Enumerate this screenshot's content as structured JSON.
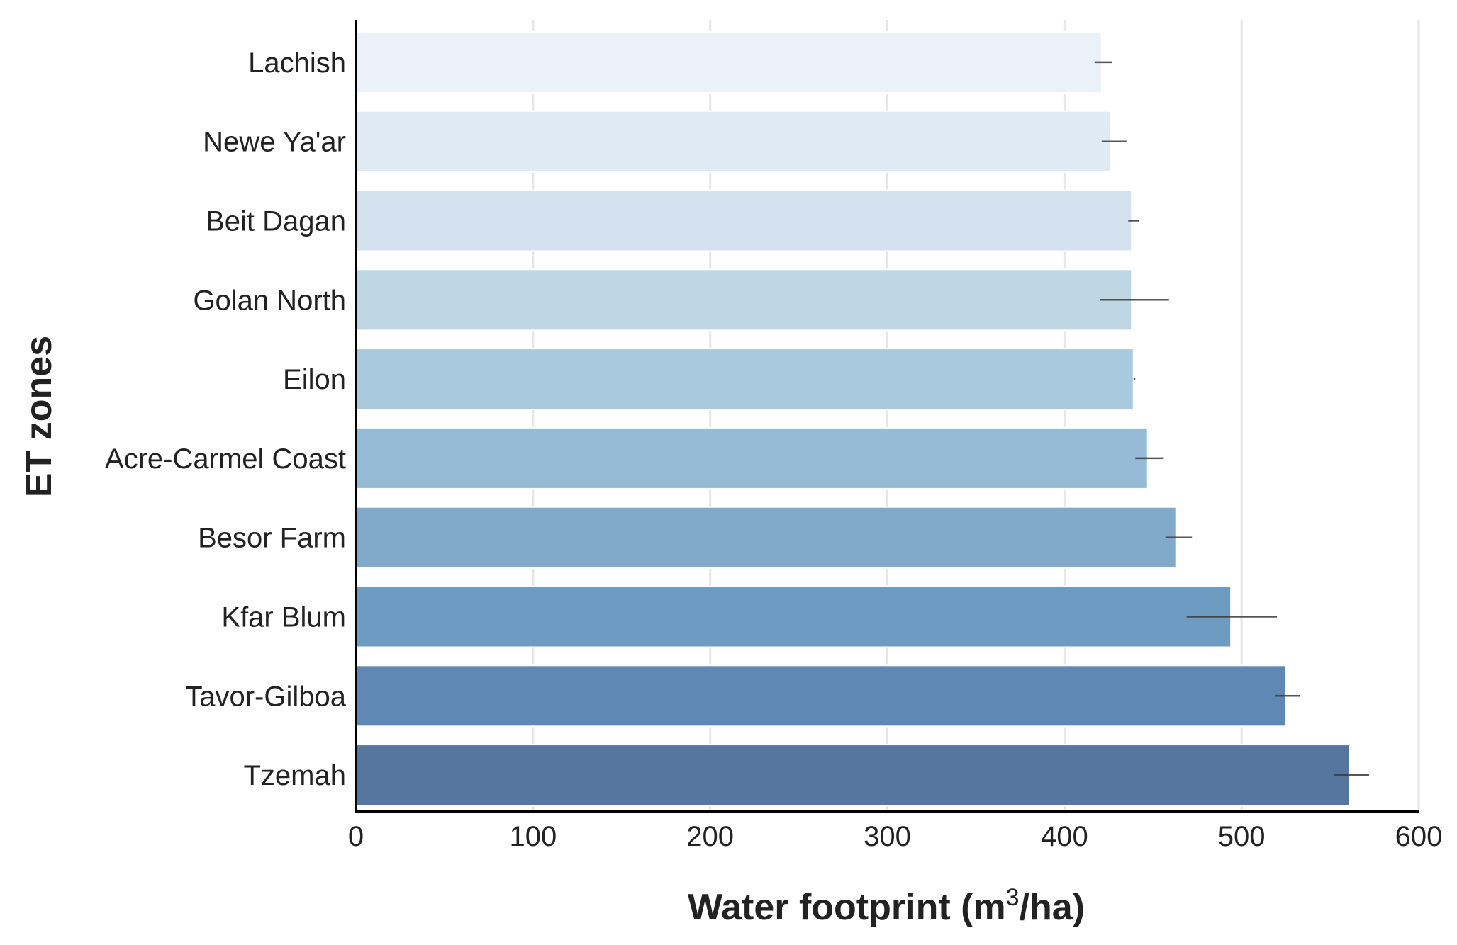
{
  "chart_data": {
    "type": "bar",
    "orientation": "horizontal",
    "categories": [
      "Lachish",
      "Newe Ya'ar",
      "Beit Dagan",
      "Golan North",
      "Eilon",
      "Acre-Carmel Coast",
      "Besor Farm",
      "Kfar Blum",
      "Tavor-Gilboa",
      "Tzemah"
    ],
    "values": [
      421,
      426,
      438,
      438,
      439,
      447,
      463,
      494,
      525,
      561
    ],
    "error_low": [
      417,
      421,
      436,
      420,
      439,
      440,
      457,
      469,
      519,
      552
    ],
    "error_high": [
      427,
      435,
      442,
      459,
      440,
      456,
      472,
      520,
      533,
      572
    ],
    "colors": [
      "#eaf1f8",
      "#dfeaf3",
      "#d3e2ee",
      "#bfd6e5",
      "#a9c9de",
      "#95bbd6",
      "#81aaca",
      "#6e9bc2",
      "#5f88b4",
      "#5676a0"
    ],
    "xlabel": "Water footprint (m",
    "xlabel_sup": "3",
    "xlabel_end": "/ha)",
    "ylabel": "ET zones",
    "xlim": [
      0,
      600
    ],
    "xticks": [
      0,
      100,
      200,
      300,
      400,
      500,
      600
    ],
    "grid": "vertical"
  }
}
